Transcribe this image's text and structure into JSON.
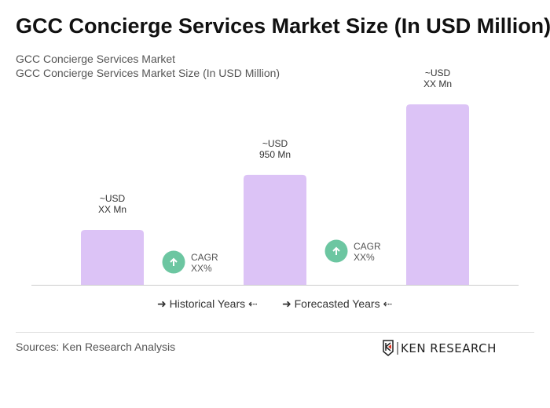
{
  "title": "GCC Concierge Services Market Size (In USD Million)",
  "subtitle1": "GCC Concierge Services Market",
  "subtitle2": "GCC Concierge Services Market Size (In USD Million)",
  "chart_data": {
    "type": "bar",
    "categories": [
      "",
      "",
      ""
    ],
    "values": [
      475,
      950,
      1560
    ],
    "data_labels": [
      [
        "~USD",
        "XX Mn"
      ],
      [
        "~USD",
        "950 Mn"
      ],
      [
        "~USD",
        "XX Mn"
      ]
    ],
    "cagr": [
      [
        "CAGR",
        "XX%"
      ],
      [
        "CAGR",
        "XX%"
      ]
    ],
    "bar_color": "#dcc3f6",
    "cagr_color": "#6cc6a1",
    "grid": false
  },
  "legend": {
    "historical": "Historical Years",
    "forecasted": "Forecasted Years"
  },
  "footer": {
    "sources": "Sources: Ken Research Analysis",
    "logo_text": "KEN RESEARCH"
  }
}
